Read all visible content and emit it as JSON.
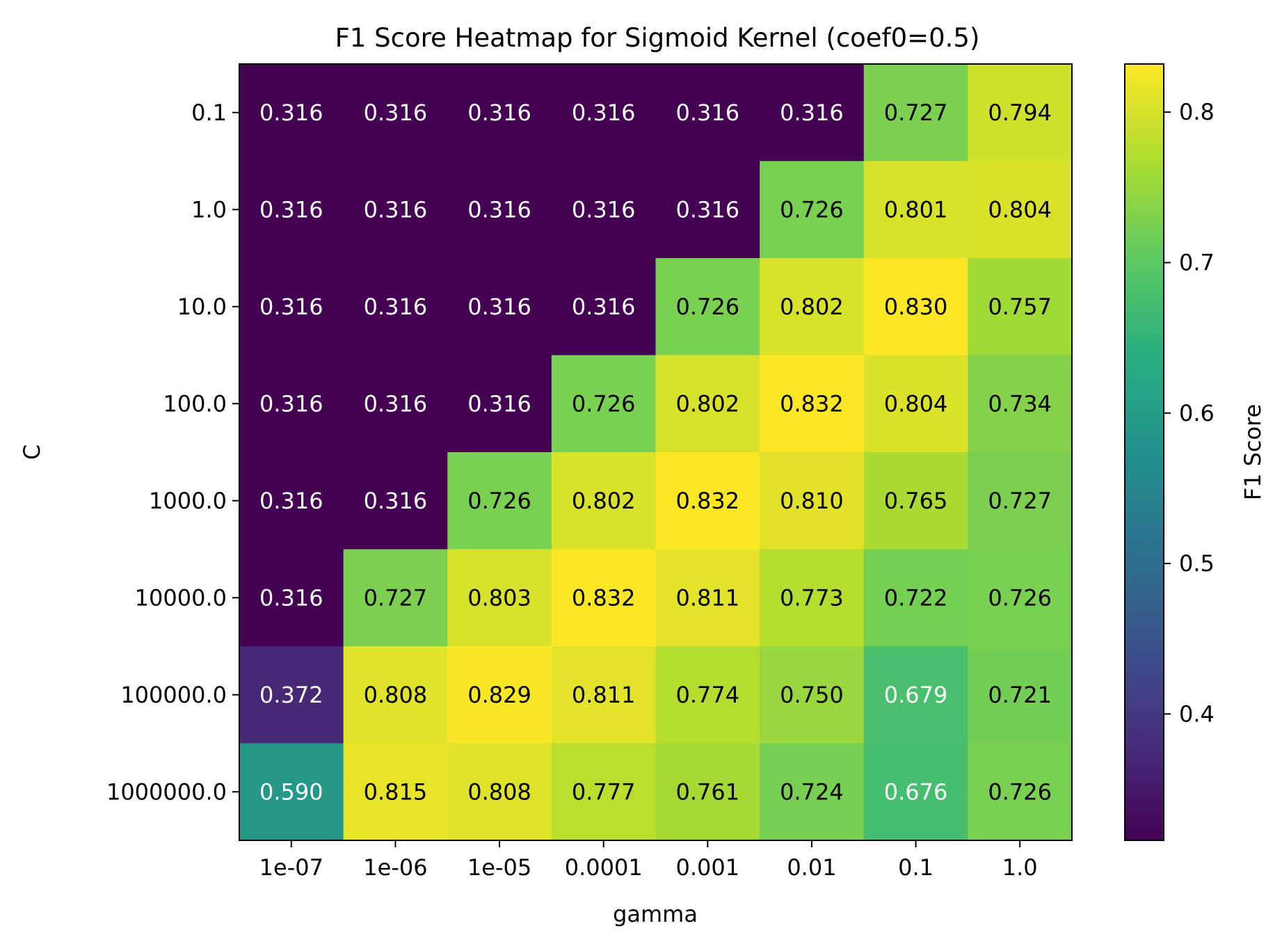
{
  "chart_data": {
    "type": "heatmap",
    "title": "F1 Score Heatmap for Sigmoid Kernel (coef0=0.5)",
    "xlabel": "gamma",
    "ylabel": "C",
    "x_categories": [
      "1e-07",
      "1e-06",
      "1e-05",
      "0.0001",
      "0.001",
      "0.01",
      "0.1",
      "1.0"
    ],
    "y_categories": [
      "0.1",
      "1.0",
      "10.0",
      "100.0",
      "1000.0",
      "10000.0",
      "100000.0",
      "1000000.0"
    ],
    "values": [
      [
        0.316,
        0.316,
        0.316,
        0.316,
        0.316,
        0.316,
        0.727,
        0.794
      ],
      [
        0.316,
        0.316,
        0.316,
        0.316,
        0.316,
        0.726,
        0.801,
        0.804
      ],
      [
        0.316,
        0.316,
        0.316,
        0.316,
        0.726,
        0.802,
        0.83,
        0.757
      ],
      [
        0.316,
        0.316,
        0.316,
        0.726,
        0.802,
        0.832,
        0.804,
        0.734
      ],
      [
        0.316,
        0.316,
        0.726,
        0.802,
        0.832,
        0.81,
        0.765,
        0.727
      ],
      [
        0.316,
        0.727,
        0.803,
        0.832,
        0.811,
        0.773,
        0.722,
        0.726
      ],
      [
        0.372,
        0.808,
        0.829,
        0.811,
        0.774,
        0.75,
        0.679,
        0.721
      ],
      [
        0.59,
        0.815,
        0.808,
        0.777,
        0.761,
        0.724,
        0.676,
        0.726
      ]
    ],
    "colormap": "viridis",
    "color_range": [
      0.316,
      0.832
    ],
    "colorbar": {
      "label": "F1 Score",
      "ticks": [
        0.4,
        0.5,
        0.6,
        0.7,
        0.8
      ],
      "tick_labels": [
        "0.4",
        "0.5",
        "0.6",
        "0.7",
        "0.8"
      ]
    },
    "grid": false,
    "legend": "none"
  }
}
